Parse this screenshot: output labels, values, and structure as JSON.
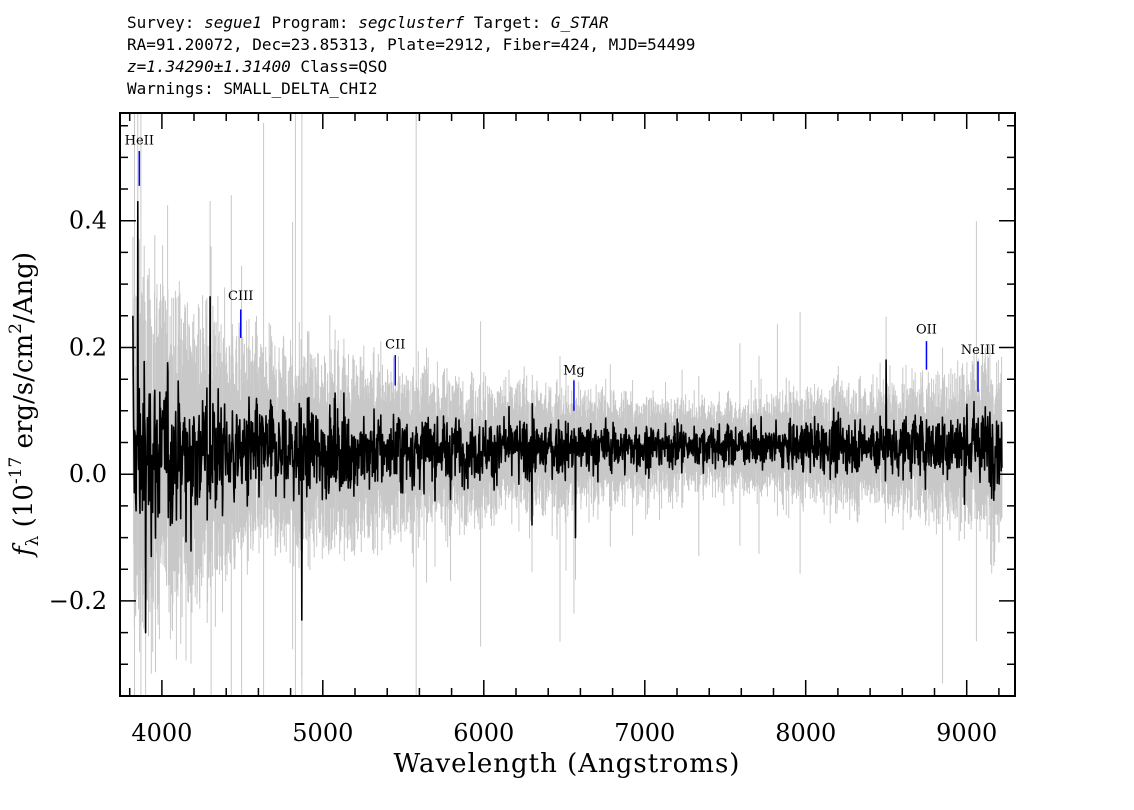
{
  "header": {
    "survey_label": "Survey: ",
    "survey": "segue1",
    "program_label": " Program: ",
    "program": "segclusterf",
    "target_label": " Target: ",
    "target": "G_STAR",
    "line2": "RA=91.20072, Dec=23.85313, Plate=2912, Fiber=424, MJD=54499",
    "redshift": "z=1.34290±1.31400",
    "class_text": " Class=QSO",
    "warnings": "Warnings: SMALL_DELTA_CHI2"
  },
  "chart_data": {
    "type": "line",
    "xlabel": "Wavelength (Angstroms)",
    "ylabel_prefix": "f",
    "ylabel_sub": "λ",
    "ylabel_body": " (10",
    "ylabel_exp": "-17",
    "ylabel_units": " erg/s/cm",
    "ylabel_exp2": "2",
    "ylabel_tail": "/Ang)",
    "xlim": [
      3740,
      9300
    ],
    "ylim": [
      -0.35,
      0.57
    ],
    "xticks": [
      4000,
      5000,
      6000,
      7000,
      8000,
      9000
    ],
    "xtick_labels": [
      "4000",
      "5000",
      "6000",
      "7000",
      "8000",
      "9000"
    ],
    "yticks": [
      -0.2,
      0.0,
      0.2,
      0.4
    ],
    "ytick_labels": [
      "−0.2",
      "0.0",
      "0.2",
      "0.4"
    ],
    "spectrum_range": [
      3820,
      9220
    ],
    "series": [
      {
        "role": "error",
        "color": "#c8c8c8"
      },
      {
        "role": "flux",
        "color": "#000000"
      }
    ],
    "spectrum_key_points": [
      {
        "x": 3820,
        "y": 0.25
      },
      {
        "x": 3850,
        "y": 0.43
      },
      {
        "x": 3900,
        "y": -0.25
      },
      {
        "x": 4300,
        "y": 0.28
      },
      {
        "x": 4870,
        "y": -0.23
      },
      {
        "x": 6300,
        "y": -0.08
      },
      {
        "x": 6570,
        "y": -0.1
      },
      {
        "x": 7000,
        "y": 0.04
      },
      {
        "x": 8500,
        "y": 0.18
      },
      {
        "x": 9220,
        "y": 0.01
      }
    ],
    "line_markers": [
      {
        "label": "HeII",
        "x": 3860,
        "y0": 0.455,
        "y1": 0.51,
        "label_y": 0.52
      },
      {
        "label": "CIII",
        "x": 4490,
        "y0": 0.215,
        "y1": 0.26,
        "label_y": 0.275
      },
      {
        "label": "CII",
        "x": 5450,
        "y0": 0.14,
        "y1": 0.188,
        "label_y": 0.198
      },
      {
        "label": "Mg",
        "x": 6560,
        "y0": 0.1,
        "y1": 0.148,
        "label_y": 0.157
      },
      {
        "label": "OII",
        "x": 8750,
        "y0": 0.165,
        "y1": 0.21,
        "label_y": 0.222
      },
      {
        "label": "NeIII",
        "x": 9070,
        "y0": 0.13,
        "y1": 0.178,
        "label_y": 0.19
      }
    ],
    "marker_color": "#0000ff",
    "grid": false,
    "legend": "none"
  }
}
